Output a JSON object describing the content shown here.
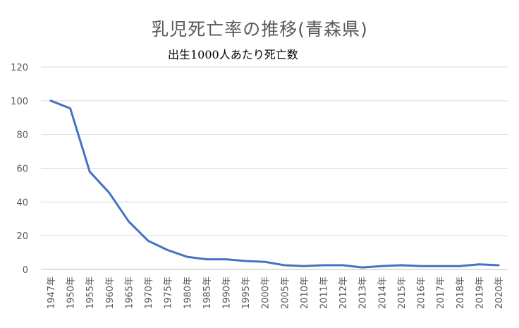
{
  "chart_data": {
    "type": "line",
    "title": "乳児死亡率の推移(青森県)",
    "subtitle": "出生1000人あたり死亡数",
    "xlabel": "",
    "ylabel": "",
    "ylim": [
      0,
      120
    ],
    "yticks": [
      "0",
      "20",
      "40",
      "60",
      "80",
      "100",
      "120"
    ],
    "grid": true,
    "legend": "none",
    "line_color": "#4472c4",
    "categories": [
      "1947年",
      "1950年",
      "1955年",
      "1960年",
      "1965年",
      "1970年",
      "1975年",
      "1980年",
      "1985年",
      "1990年",
      "1995年",
      "2000年",
      "2005年",
      "2010年",
      "2011年",
      "2012年",
      "2013年",
      "2014年",
      "2015年",
      "2016年",
      "2017年",
      "2018年",
      "2019年",
      "2020年"
    ],
    "series": [
      {
        "values": [
          100,
          95.5,
          58,
          45.5,
          28.5,
          17,
          11.5,
          7.5,
          6,
          6,
          5,
          4.5,
          2.5,
          2,
          2.5,
          2.5,
          1.2,
          2,
          2.5,
          2,
          2,
          2,
          3,
          2.5
        ]
      }
    ]
  }
}
